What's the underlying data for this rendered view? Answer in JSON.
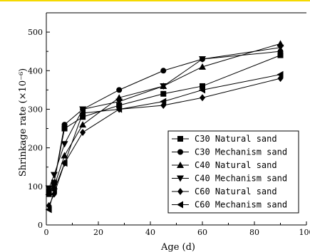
{
  "chart_data": {
    "type": "line",
    "title": "",
    "xlabel": "Age (d)",
    "ylabel": "Shrinkage rate (×10⁻⁶)",
    "xlim": [
      0,
      100
    ],
    "ylim": [
      0,
      550
    ],
    "x_ticks": [
      "0",
      "20",
      "40",
      "60",
      "80",
      "100"
    ],
    "y_ticks": [
      "0",
      "100",
      "200",
      "300",
      "400",
      "500"
    ],
    "grid": false,
    "legend_position": "lower-right",
    "x": [
      1,
      3,
      7,
      14,
      28,
      45,
      60,
      90
    ],
    "series": [
      {
        "name": "C30 Natural sand",
        "marker": "square",
        "values": [
          80,
          110,
          250,
          280,
          310,
          340,
          360,
          440
        ]
      },
      {
        "name": "C30 Mechanism sand",
        "marker": "circle",
        "values": [
          90,
          110,
          260,
          300,
          350,
          400,
          430,
          450
        ]
      },
      {
        "name": "C40 Natural sand",
        "marker": "triangle-up",
        "values": [
          85,
          100,
          180,
          260,
          330,
          360,
          410,
          470
        ]
      },
      {
        "name": "C40 Mechanism sand",
        "marker": "triangle-down",
        "values": [
          95,
          130,
          210,
          300,
          320,
          360,
          430,
          460
        ]
      },
      {
        "name": "C60 Natural sand",
        "marker": "diamond",
        "values": [
          50,
          80,
          160,
          240,
          300,
          310,
          330,
          380
        ]
      },
      {
        "name": "C60 Mechanism sand",
        "marker": "triangle-left",
        "values": [
          40,
          90,
          160,
          290,
          300,
          320,
          350,
          390
        ]
      }
    ]
  }
}
